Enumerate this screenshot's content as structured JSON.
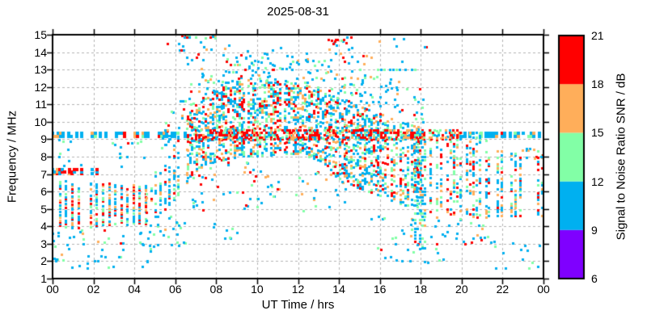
{
  "page": {
    "background": "#ffffff"
  },
  "chart_data": {
    "type": "scatter",
    "subtype": "time-frequency SNR heatmap scatter",
    "title": "2025-08-31",
    "xlabel": "UT Time / hrs",
    "ylabel": "Frequency / MHz",
    "xlim": [
      0,
      24
    ],
    "ylim": [
      1,
      15
    ],
    "x_major_ticks": [
      0,
      2,
      4,
      6,
      8,
      10,
      12,
      14,
      16,
      18,
      20,
      22,
      24
    ],
    "x_tick_labels": [
      "00",
      "02",
      "04",
      "06",
      "08",
      "10",
      "12",
      "14",
      "16",
      "18",
      "20",
      "22",
      "00"
    ],
    "y_ticks": [
      1,
      2,
      3,
      4,
      5,
      6,
      7,
      8,
      9,
      10,
      11,
      12,
      13,
      14,
      15
    ],
    "y_tick_labels": [
      "1",
      "2",
      "3",
      "4",
      "5",
      "6",
      "7",
      "8",
      "9",
      "10",
      "11",
      "12",
      "13",
      "14",
      "15"
    ],
    "grid": {
      "show": true,
      "color": "#b4b4b4",
      "dash": [
        3,
        3
      ]
    },
    "axis_color": "#000000",
    "colorbar": {
      "label": "Signal to Noise Ratio SNR / dB",
      "min": 6,
      "max": 21,
      "ticks": [
        6,
        9,
        12,
        15,
        18,
        21
      ],
      "tick_labels": [
        "6",
        "9",
        "12",
        "15",
        "18",
        "21"
      ],
      "levels": [
        {
          "min": 6,
          "max": 9,
          "color": "#7f00ff"
        },
        {
          "min": 9,
          "max": 12,
          "color": "#00b0f0"
        },
        {
          "min": 12,
          "max": 15,
          "color": "#82ffa6"
        },
        {
          "min": 15,
          "max": 18,
          "color": "#ffae5a"
        },
        {
          "min": 18,
          "max": 21,
          "color": "#ff0000"
        }
      ]
    },
    "palette": {
      "red": "#ff0000",
      "orange": "#ffae5a",
      "green": "#82ffa6",
      "blue": "#00b0f0",
      "purple": "#7f00ff"
    },
    "seed": 1234,
    "marker_px": 3,
    "regions": [
      {
        "name": "night-band",
        "type": "columns",
        "t0": 0.05,
        "t1": 4.55,
        "dt": 0.3,
        "df": 0.09,
        "fill": 0.62,
        "skip": 0.12,
        "f": {
          "t": [
            0,
            4.55
          ],
          "lo": [
            3.85,
            4.15
          ],
          "hi": [
            6.65,
            6.35
          ]
        },
        "colors": {
          "red": 0.22,
          "orange": 0.16,
          "green": 0.2,
          "blue": 0.42
        }
      },
      {
        "name": "night-low-sparse",
        "type": "scatter",
        "n": 55,
        "t0": 0.0,
        "t1": 5.3,
        "f": {
          "lo": 1.6,
          "hi": 3.85
        },
        "colors": {
          "blue": 0.6,
          "green": 0.25,
          "orange": 0.1,
          "red": 0.05
        }
      },
      {
        "name": "night-mid-sparse",
        "type": "scatter",
        "n": 22,
        "t0": 0.3,
        "t1": 4.6,
        "f": {
          "lo": 7.4,
          "hi": 9.0
        },
        "colors": {
          "blue": 0.8,
          "green": 0.1,
          "red": 0.1
        }
      },
      {
        "name": "beacon-9mhz-early",
        "type": "columns",
        "t0": 0.0,
        "t1": 6.6,
        "dt": 0.13,
        "df": 0.2,
        "fill": 0.9,
        "skip": 0.38,
        "size": 4,
        "f": {
          "lo": 9.14,
          "hi": 9.34
        },
        "colors": {
          "blue": 0.76,
          "orange": 0.13,
          "green": 0.07,
          "red": 0.04
        }
      },
      {
        "name": "beacon-9mhz-late",
        "type": "columns",
        "t0": 19.9,
        "t1": 24.0,
        "dt": 0.13,
        "df": 0.2,
        "fill": 0.9,
        "skip": 0.3,
        "size": 4,
        "f": {
          "lo": 9.14,
          "hi": 9.34
        },
        "colors": {
          "blue": 0.7,
          "orange": 0.16,
          "green": 0.1,
          "red": 0.04
        }
      },
      {
        "name": "line-7mhz",
        "type": "columns",
        "t0": 0.0,
        "t1": 2.3,
        "dt": 0.12,
        "df": 0.11,
        "fill": 0.8,
        "skip": 0.25,
        "size": 4,
        "f": {
          "lo": 7.02,
          "hi": 7.24
        },
        "colors": {
          "red": 0.6,
          "blue": 0.28,
          "orange": 0.12
        }
      },
      {
        "name": "dawn-rise",
        "type": "columns",
        "t0": 4.6,
        "t1": 6.6,
        "dt": 0.22,
        "df": 0.12,
        "fill": 0.4,
        "skip": 0.15,
        "f": {
          "t": [
            4.6,
            5.5,
            6.6
          ],
          "lo": [
            4.2,
            5.0,
            6.4
          ],
          "hi": [
            6.3,
            8.0,
            10.2
          ]
        },
        "colors": {
          "blue": 0.5,
          "green": 0.22,
          "red": 0.14,
          "orange": 0.14
        }
      },
      {
        "name": "midday-dome",
        "type": "columns",
        "t0": 6.6,
        "t1": 13.6,
        "dt": 0.11,
        "df": 0.13,
        "fill": 0.45,
        "skip": 0.08,
        "f": {
          "t": [
            6.6,
            7.5,
            9,
            12,
            13.6
          ],
          "lo": [
            6.8,
            7.6,
            8.0,
            8.2,
            7.6
          ],
          "hi": [
            10.4,
            11.6,
            12.3,
            12.3,
            11.8
          ]
        },
        "colors": {
          "blue": 0.44,
          "green": 0.2,
          "red": 0.2,
          "orange": 0.16
        }
      },
      {
        "name": "afternoon",
        "type": "columns",
        "t0": 13.6,
        "t1": 18.0,
        "dt": 0.11,
        "df": 0.13,
        "fill": 0.4,
        "skip": 0.08,
        "f": {
          "t": [
            13.6,
            15,
            16,
            17,
            18
          ],
          "lo": [
            7.0,
            6.2,
            5.8,
            5.3,
            5.0
          ],
          "hi": [
            11.6,
            11.0,
            10.5,
            10.0,
            9.7
          ]
        },
        "colors": {
          "blue": 0.46,
          "green": 0.2,
          "red": 0.18,
          "orange": 0.16
        }
      },
      {
        "name": "evening",
        "type": "columns",
        "t0": 18.0,
        "t1": 21.3,
        "dt": 0.16,
        "df": 0.13,
        "fill": 0.38,
        "skip": 0.12,
        "f": {
          "t": [
            18,
            19.5,
            21.3
          ],
          "lo": [
            4.9,
            4.7,
            4.5
          ],
          "hi": [
            9.6,
            9.5,
            9.4
          ]
        },
        "colors": {
          "blue": 0.42,
          "green": 0.2,
          "red": 0.2,
          "orange": 0.18
        }
      },
      {
        "name": "late-columns",
        "type": "columns",
        "t0": 21.3,
        "t1": 24.0,
        "dt": 0.22,
        "df": 0.12,
        "fill": 0.42,
        "skip": 0.2,
        "f": {
          "lo": 4.6,
          "hi": 8.4
        },
        "colors": {
          "blue": 0.4,
          "orange": 0.22,
          "green": 0.18,
          "red": 0.2
        }
      },
      {
        "name": "late-8mhz-bits",
        "type": "scatter",
        "n": 12,
        "t0": 22.9,
        "t1": 24.0,
        "f": {
          "lo": 7.9,
          "hi": 8.5
        },
        "colors": {
          "orange": 0.4,
          "blue": 0.4,
          "red": 0.2
        }
      },
      {
        "name": "red-ribbon-9mhz",
        "type": "columns",
        "t0": 6.8,
        "t1": 20.0,
        "dt": 0.09,
        "df": 0.13,
        "fill": 0.6,
        "skip": 0.12,
        "f": {
          "lo": 9.0,
          "hi": 9.55
        },
        "colors": {
          "red": 0.52,
          "orange": 0.16,
          "green": 0.13,
          "blue": 0.19
        }
      },
      {
        "name": "upper-halo",
        "type": "scatter",
        "n": 150,
        "t0": 5.3,
        "t1": 14.6,
        "f": {
          "t": [
            5.3,
            6.6,
            7.5,
            9,
            12,
            14.6
          ],
          "lo": [
            8.0,
            10.4,
            11.6,
            12.3,
            12.3,
            11.4
          ],
          "hi": [
            9.6,
            12.2,
            13.4,
            14.0,
            14.0,
            12.8
          ]
        },
        "colors": {
          "blue": 0.62,
          "green": 0.22,
          "red": 0.08,
          "orange": 0.08
        }
      },
      {
        "name": "upper-halo-pm",
        "type": "scatter",
        "n": 60,
        "t0": 14.6,
        "t1": 18.3,
        "f": {
          "t": [
            14.6,
            18.3
          ],
          "lo": [
            11.2,
            9.8
          ],
          "hi": [
            13.2,
            11.8
          ]
        },
        "colors": {
          "blue": 0.7,
          "green": 0.15,
          "red": 0.1,
          "orange": 0.05
        }
      },
      {
        "name": "top-15mhz",
        "type": "scatter",
        "n": 14,
        "t0": 6.3,
        "t1": 8.3,
        "f": {
          "lo": 14.82,
          "hi": 15.0
        },
        "colors": {
          "orange": 0.3,
          "red": 0.2,
          "green": 0.2,
          "blue": 0.3
        }
      },
      {
        "name": "high-sparse",
        "type": "scatter",
        "n": 40,
        "t0": 5.4,
        "t1": 14.6,
        "f": {
          "lo": 13.3,
          "hi": 14.7
        },
        "colors": {
          "blue": 0.7,
          "red": 0.14,
          "orange": 0.1,
          "green": 0.06
        }
      },
      {
        "name": "high-sparse-pm",
        "type": "scatter",
        "n": 20,
        "t0": 13.8,
        "t1": 18.3,
        "f": {
          "lo": 13.3,
          "hi": 14.9
        },
        "colors": {
          "blue": 0.6,
          "red": 0.2,
          "orange": 0.2
        }
      },
      {
        "name": "red-cluster-14.6",
        "type": "scatter",
        "n": 10,
        "t0": 13.4,
        "t1": 14.4,
        "f": {
          "lo": 14.45,
          "hi": 14.75
        },
        "colors": {
          "red": 0.6,
          "blue": 0.3,
          "green": 0.1
        }
      },
      {
        "name": "line-13mhz-pm",
        "type": "columns",
        "t0": 15.9,
        "t1": 17.7,
        "dt": 0.15,
        "df": 0.2,
        "fill": 0.8,
        "skip": 0.3,
        "f": {
          "lo": 13.0,
          "hi": 13.1
        },
        "colors": {
          "blue": 0.9,
          "green": 0.1
        }
      },
      {
        "name": "below-dome-sparse",
        "type": "scatter",
        "n": 85,
        "t0": 6.8,
        "t1": 14.5,
        "f": {
          "lo": 4.9,
          "hi": 7.7
        },
        "colors": {
          "blue": 0.5,
          "green": 0.2,
          "orange": 0.15,
          "red": 0.15
        }
      },
      {
        "name": "mid-morning-low",
        "type": "scatter",
        "n": 8,
        "t0": 7.8,
        "t1": 9.6,
        "f": {
          "lo": 3.2,
          "hi": 4.3
        },
        "colors": {
          "blue": 0.8,
          "green": 0.2
        }
      },
      {
        "name": "pm-low-sparse",
        "type": "scatter",
        "n": 40,
        "t0": 15.5,
        "t1": 19.2,
        "f": {
          "lo": 1.9,
          "hi": 4.7
        },
        "colors": {
          "blue": 0.6,
          "green": 0.2,
          "orange": 0.1,
          "red": 0.1
        }
      },
      {
        "name": "pm-low-sparse2",
        "type": "scatter",
        "n": 22,
        "t0": 19.2,
        "t1": 21.5,
        "f": {
          "lo": 2.8,
          "hi": 4.6
        },
        "colors": {
          "blue": 0.55,
          "green": 0.25,
          "orange": 0.1,
          "red": 0.1
        }
      },
      {
        "name": "late-bottom-dots",
        "type": "scatter",
        "n": 14,
        "t0": 21.3,
        "t1": 23.8,
        "f": {
          "lo": 1.4,
          "hi": 3.2
        },
        "colors": {
          "blue": 0.7,
          "green": 0.3
        }
      },
      {
        "name": "streak-18h",
        "type": "columns",
        "t0": 17.7,
        "t1": 18.25,
        "dt": 0.12,
        "df": 0.18,
        "fill": 0.45,
        "skip": 0,
        "f": {
          "lo": 2.6,
          "hi": 9.6
        },
        "colors": {
          "blue": 0.6,
          "green": 0.2,
          "red": 0.1,
          "orange": 0.1
        }
      },
      {
        "name": "dawn-low-sparse",
        "type": "scatter",
        "n": 25,
        "t0": 4.4,
        "t1": 6.6,
        "f": {
          "lo": 2.8,
          "hi": 4.6
        },
        "colors": {
          "blue": 0.6,
          "green": 0.3,
          "orange": 0.1
        }
      }
    ]
  }
}
